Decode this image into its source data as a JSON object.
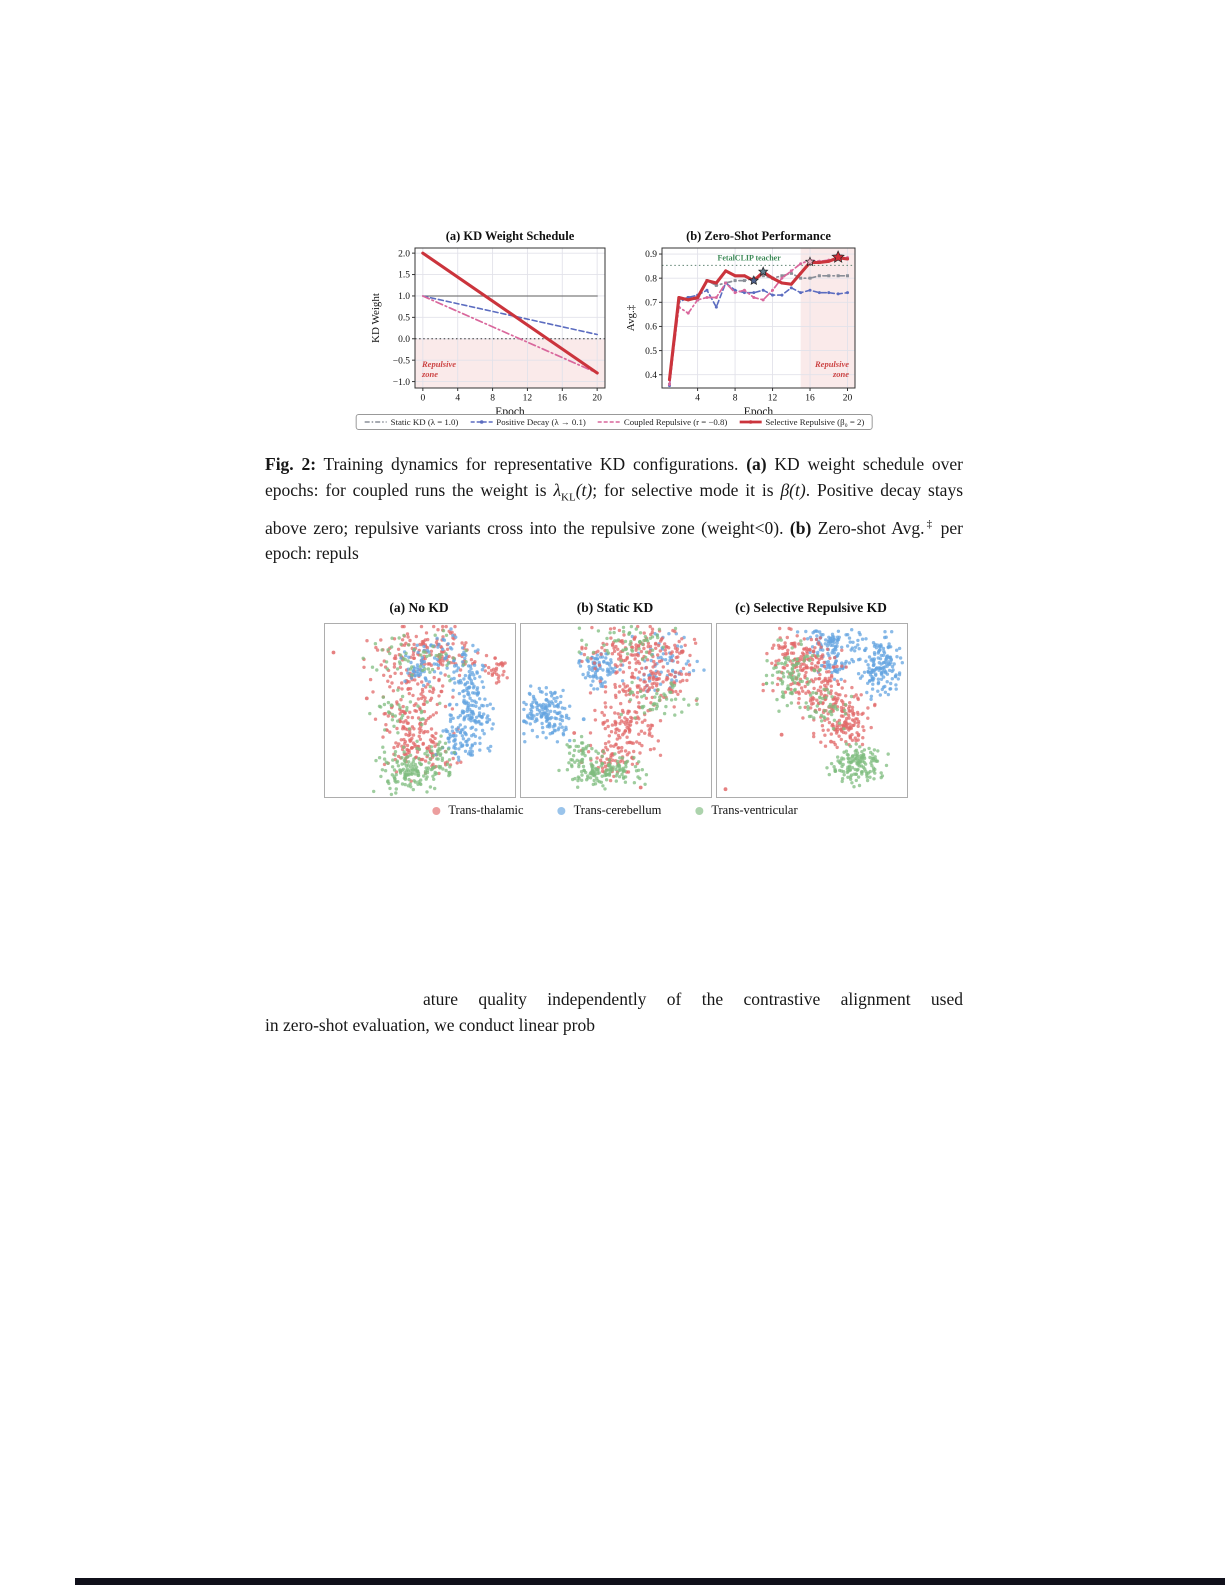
{
  "caption": {
    "fig_label": "Fig. 2:",
    "t1": " Training dynamics for representative KD configurations. ",
    "a_label": "(a)",
    "t2": " KD weight schedule over epochs: for coupled runs the weight is ",
    "m1a": "λ",
    "m1sub": "KL",
    "m1b": "(t)",
    "t3": "; for selective mode it is ",
    "m2": "β(t)",
    "t4": ". Positive decay stays above zero; repulsive variants cross into the repulsive zone (weight<0). ",
    "b_label": "(b)",
    "t5": " Zero-shot Avg.",
    "t5sup": "‡",
    "t6": " per epoch: repuls"
  },
  "body": {
    "line1": "ature quality independently of the contrastive alignment used",
    "line2": "in zero-shot evaluation, we conduct linear prob"
  },
  "figure1": {
    "legend": [
      {
        "label": "Static KD (λ = 1.0)",
        "color": "#8a8f98",
        "style": "dashdot-thin"
      },
      {
        "label": "Positive Decay (λ → 0.1)",
        "color": "#5b6cc0",
        "style": "dashed-marker"
      },
      {
        "label": "Coupled Repulsive (r = −0.8)",
        "color": "#d9679c",
        "style": "dashed"
      },
      {
        "label": "Selective Repulsive (β₀ = 2)",
        "color": "#cb343c",
        "style": "solid-thick-marker"
      }
    ]
  },
  "figure2": {
    "legend": [
      {
        "label": "Trans-thalamic",
        "color": "#e26a6a"
      },
      {
        "label": "Trans-cerebellum",
        "color": "#64a4e0"
      },
      {
        "label": "Trans-ventricular",
        "color": "#7fbc7f"
      }
    ]
  },
  "chart_data": [
    {
      "id": "kd-weight-schedule",
      "type": "line",
      "title": "(a) KD Weight Schedule",
      "xlabel": "Epoch",
      "ylabel": "KD Weight",
      "xlim": [
        -0.9,
        20.9
      ],
      "ylim": [
        -1.15,
        2.12
      ],
      "xticks": [
        0,
        4,
        8,
        12,
        16,
        20
      ],
      "yticks": [
        -1.0,
        -0.5,
        0.0,
        0.5,
        1.0,
        1.5,
        2.0
      ],
      "zero_line": 0.0,
      "zone": {
        "mode": "below",
        "value": 0.0,
        "label_lines": [
          "Repulsive",
          "zone"
        ],
        "anchor": "start"
      },
      "series": [
        {
          "name": "Static KD (λ = 1.0)",
          "color": "#7d7d7d",
          "style": "solid-thin",
          "x": [
            0,
            20
          ],
          "y": [
            1.0,
            1.0
          ]
        },
        {
          "name": "Positive Decay (λ → 0.1)",
          "color": "#5b6cc0",
          "style": "dashed",
          "x": [
            0,
            20
          ],
          "y": [
            1.0,
            0.1
          ]
        },
        {
          "name": "Coupled Repulsive (r = −0.8)",
          "color": "#d9679c",
          "style": "dashdot",
          "x": [
            0,
            20
          ],
          "y": [
            1.0,
            -0.8
          ]
        },
        {
          "name": "Selective Repulsive (β₀ = 2)",
          "color": "#cb343c",
          "style": "solid-thick",
          "x": [
            0,
            20
          ],
          "y": [
            2.0,
            -0.8
          ]
        }
      ]
    },
    {
      "id": "zero-shot-performance",
      "type": "line",
      "title": "(b) Zero-Shot Performance",
      "xlabel": "Epoch",
      "ylabel": "Avg.‡",
      "xlim": [
        0.2,
        20.8
      ],
      "ylim": [
        0.345,
        0.925
      ],
      "xticks": [
        4,
        8,
        12,
        16,
        20
      ],
      "yticks": [
        0.4,
        0.5,
        0.6,
        0.7,
        0.8,
        0.9
      ],
      "teacher": {
        "y": 0.853,
        "label": "FetalCLIP teacher",
        "label_x": 9.5,
        "color": "#3d8a57"
      },
      "zone": {
        "mode": "xfrom",
        "value": 15,
        "label_lines": [
          "Repulsive",
          "zone"
        ],
        "anchor": "end"
      },
      "x": [
        1,
        2,
        3,
        4,
        5,
        6,
        7,
        8,
        9,
        10,
        11,
        12,
        13,
        14,
        15,
        16,
        17,
        18,
        19,
        20
      ],
      "series": [
        {
          "name": "Static KD (λ = 1.0)",
          "color": "#8a8f98",
          "style": "dashdot",
          "marker": "s",
          "y": [
            0.36,
            0.71,
            0.72,
            0.71,
            0.79,
            0.77,
            0.78,
            0.79,
            0.79,
            0.8,
            0.81,
            0.8,
            0.81,
            0.82,
            0.8,
            0.8,
            0.81,
            0.81,
            0.81,
            0.81
          ]
        },
        {
          "name": "Positive Decay (λ → 0.1)",
          "color": "#5b6cc0",
          "style": "dashed",
          "marker": "o",
          "y": [
            0.355,
            0.7,
            0.72,
            0.73,
            0.75,
            0.68,
            0.78,
            0.75,
            0.74,
            0.74,
            0.75,
            0.73,
            0.73,
            0.76,
            0.74,
            0.75,
            0.74,
            0.74,
            0.735,
            0.74
          ]
        },
        {
          "name": "Coupled Repulsive (r = −0.8)",
          "color": "#d9679c",
          "style": "dashdot",
          "marker": "o",
          "y": [
            0.36,
            0.68,
            0.655,
            0.71,
            0.72,
            0.72,
            0.78,
            0.74,
            0.75,
            0.72,
            0.71,
            0.75,
            0.8,
            0.83,
            0.86,
            0.875,
            0.87,
            0.875,
            0.88,
            0.885
          ]
        },
        {
          "name": "Selective Repulsive (β₀ = 2)",
          "color": "#cb343c",
          "style": "solid-thick",
          "marker": "o",
          "y": [
            0.38,
            0.72,
            0.71,
            0.72,
            0.79,
            0.78,
            0.83,
            0.81,
            0.81,
            0.79,
            0.825,
            0.8,
            0.78,
            0.775,
            0.82,
            0.865,
            0.865,
            0.87,
            0.885,
            0.88
          ]
        }
      ],
      "stars": [
        {
          "x": 10,
          "y": 0.79,
          "color": "#4f6390",
          "r": 4.6
        },
        {
          "x": 11,
          "y": 0.827,
          "color": "#5f7d8e",
          "r": 4.6
        },
        {
          "x": 16,
          "y": 0.868,
          "color": "#e9aebf",
          "r": 4.6
        },
        {
          "x": 19,
          "y": 0.887,
          "color": "#cf2e38",
          "r": 6.2
        }
      ]
    },
    {
      "id": "embedding-scatter",
      "type": "scatter",
      "classes": [
        {
          "name": "Trans-thalamic",
          "color": "#e26a6a"
        },
        {
          "name": "Trans-cerebellum",
          "color": "#64a4e0"
        },
        {
          "name": "Trans-ventricular",
          "color": "#7fbc7f"
        }
      ],
      "panels": [
        {
          "title": "(a) No KD",
          "clusters": [
            [
              0.55,
              0.16,
              0.15,
              0.07,
              150,
              0
            ],
            [
              0.47,
              0.4,
              0.1,
              0.09,
              80,
              0
            ],
            [
              0.45,
              0.62,
              0.08,
              0.09,
              100,
              0
            ],
            [
              0.52,
              0.77,
              0.09,
              0.06,
              50,
              0
            ],
            [
              0.91,
              0.28,
              0.025,
              0.03,
              25,
              0
            ],
            [
              0.63,
              0.19,
              0.1,
              0.07,
              70,
              1
            ],
            [
              0.78,
              0.37,
              0.05,
              0.07,
              55,
              1
            ],
            [
              0.77,
              0.55,
              0.05,
              0.09,
              110,
              1
            ],
            [
              0.7,
              0.7,
              0.05,
              0.05,
              50,
              1
            ],
            [
              0.5,
              0.29,
              0.04,
              0.04,
              25,
              1
            ],
            [
              0.5,
              0.2,
              0.13,
              0.07,
              55,
              2
            ],
            [
              0.42,
              0.5,
              0.08,
              0.06,
              35,
              2
            ],
            [
              0.45,
              0.85,
              0.09,
              0.06,
              140,
              2
            ],
            [
              0.6,
              0.74,
              0.05,
              0.04,
              30,
              2
            ]
          ],
          "singles": [
            [
              0.045,
              0.165,
              0
            ],
            [
              0.22,
              0.43,
              0
            ],
            [
              0.35,
              0.47,
              2
            ]
          ]
        },
        {
          "title": "(b) Static KD",
          "clusters": [
            [
              0.13,
              0.52,
              0.055,
              0.07,
              150,
              1
            ],
            [
              0.42,
              0.26,
              0.05,
              0.05,
              85,
              1
            ],
            [
              0.77,
              0.24,
              0.1,
              0.08,
              65,
              1
            ],
            [
              0.62,
              0.14,
              0.13,
              0.06,
              140,
              0
            ],
            [
              0.67,
              0.34,
              0.11,
              0.07,
              110,
              0
            ],
            [
              0.55,
              0.6,
              0.08,
              0.09,
              120,
              0
            ],
            [
              0.48,
              0.79,
              0.07,
              0.05,
              55,
              0
            ],
            [
              0.56,
              0.11,
              0.11,
              0.05,
              55,
              2
            ],
            [
              0.72,
              0.44,
              0.09,
              0.06,
              45,
              2
            ],
            [
              0.43,
              0.85,
              0.1,
              0.05,
              140,
              2
            ],
            [
              0.31,
              0.72,
              0.04,
              0.03,
              22,
              2
            ]
          ],
          "singles": [
            [
              0.63,
              0.945,
              0
            ],
            [
              0.33,
              0.55,
              1
            ],
            [
              0.28,
              0.63,
              0
            ]
          ]
        },
        {
          "title": "(c) Selective Repulsive KD",
          "clusters": [
            [
              0.6,
              0.11,
              0.08,
              0.045,
              85,
              1
            ],
            [
              0.86,
              0.24,
              0.05,
              0.085,
              150,
              1
            ],
            [
              0.63,
              0.24,
              0.05,
              0.05,
              45,
              1
            ],
            [
              0.45,
              0.21,
              0.09,
              0.08,
              150,
              0
            ],
            [
              0.55,
              0.41,
              0.07,
              0.07,
              95,
              0
            ],
            [
              0.67,
              0.57,
              0.07,
              0.07,
              130,
              0
            ],
            [
              0.41,
              0.3,
              0.065,
              0.09,
              90,
              2
            ],
            [
              0.57,
              0.49,
              0.06,
              0.05,
              40,
              2
            ],
            [
              0.74,
              0.82,
              0.07,
              0.055,
              140,
              2
            ]
          ],
          "singles": [
            [
              0.045,
              0.955,
              0
            ],
            [
              0.34,
              0.64,
              0
            ],
            [
              0.6,
              0.68,
              0
            ]
          ]
        }
      ]
    }
  ]
}
